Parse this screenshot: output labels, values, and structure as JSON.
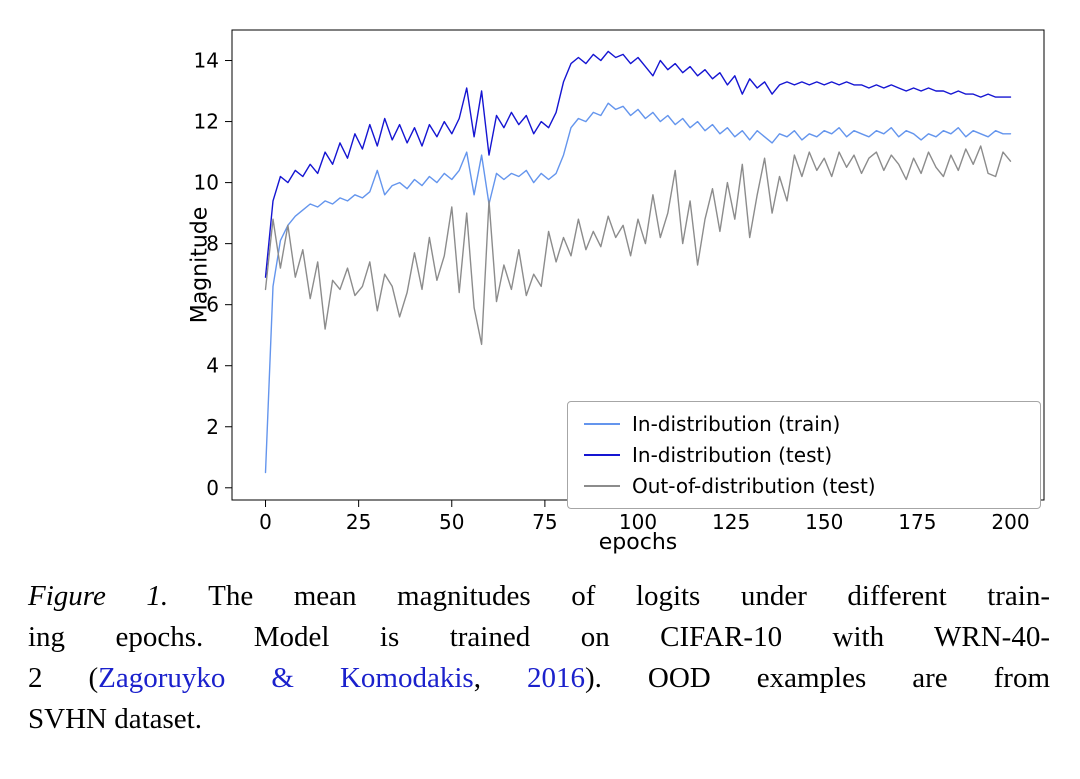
{
  "figure": {
    "caption": {
      "lines": [
        {
          "justify": true,
          "segments": [
            {
              "style": "italic",
              "text": "Figure 1."
            },
            {
              "style": "plain",
              "text": " The mean magnitudes of logits under different train-"
            }
          ]
        },
        {
          "justify": true,
          "segments": [
            {
              "style": "plain",
              "text": "ing epochs. Model is trained on CIFAR-10 with WRN-40-"
            }
          ]
        },
        {
          "justify": true,
          "segments": [
            {
              "style": "plain",
              "text": "2 ("
            },
            {
              "style": "link",
              "text": "Zagoruyko & Komodakis"
            },
            {
              "style": "plain",
              "text": ", "
            },
            {
              "style": "link",
              "text": "2016"
            },
            {
              "style": "plain",
              "text": "). OOD examples are from"
            }
          ]
        },
        {
          "justify": false,
          "segments": [
            {
              "style": "plain",
              "text": "SVHN dataset."
            }
          ]
        }
      ]
    }
  },
  "chart_data": {
    "type": "line",
    "title": "",
    "xlabel": "epochs",
    "ylabel": "Magnitude",
    "xlim": [
      -9,
      209
    ],
    "ylim": [
      -0.4,
      15.0
    ],
    "x_ticks": [
      0,
      25,
      50,
      75,
      100,
      125,
      150,
      175,
      200
    ],
    "y_ticks": [
      0,
      2,
      4,
      6,
      8,
      10,
      12,
      14
    ],
    "grid": false,
    "legend_position": "lower right",
    "x": [
      0,
      2,
      4,
      6,
      8,
      10,
      12,
      14,
      16,
      18,
      20,
      22,
      24,
      26,
      28,
      30,
      32,
      34,
      36,
      38,
      40,
      42,
      44,
      46,
      48,
      50,
      52,
      54,
      56,
      58,
      60,
      62,
      64,
      66,
      68,
      70,
      72,
      74,
      76,
      78,
      80,
      82,
      84,
      86,
      88,
      90,
      92,
      94,
      96,
      98,
      100,
      102,
      104,
      106,
      108,
      110,
      112,
      114,
      116,
      118,
      120,
      122,
      124,
      126,
      128,
      130,
      132,
      134,
      136,
      138,
      140,
      142,
      144,
      146,
      148,
      150,
      152,
      154,
      156,
      158,
      160,
      162,
      164,
      166,
      168,
      170,
      172,
      174,
      176,
      178,
      180,
      182,
      184,
      186,
      188,
      190,
      192,
      194,
      196,
      198,
      200
    ],
    "series": [
      {
        "name": "In-distribution (train)",
        "color": "#6495ed",
        "values": [
          0.5,
          6.6,
          8.1,
          8.6,
          8.9,
          9.1,
          9.3,
          9.2,
          9.4,
          9.3,
          9.5,
          9.4,
          9.6,
          9.5,
          9.7,
          10.4,
          9.6,
          9.9,
          10.0,
          9.8,
          10.1,
          9.9,
          10.2,
          10.0,
          10.3,
          10.1,
          10.4,
          11.0,
          9.6,
          10.9,
          9.3,
          10.3,
          10.1,
          10.3,
          10.2,
          10.4,
          10.0,
          10.3,
          10.1,
          10.3,
          10.9,
          11.8,
          12.1,
          12.0,
          12.3,
          12.2,
          12.6,
          12.4,
          12.5,
          12.2,
          12.4,
          12.1,
          12.3,
          12.0,
          12.2,
          11.9,
          12.1,
          11.8,
          12.0,
          11.7,
          11.9,
          11.6,
          11.8,
          11.5,
          11.7,
          11.4,
          11.7,
          11.5,
          11.3,
          11.6,
          11.5,
          11.7,
          11.4,
          11.6,
          11.5,
          11.7,
          11.6,
          11.8,
          11.5,
          11.7,
          11.6,
          11.5,
          11.7,
          11.6,
          11.8,
          11.5,
          11.7,
          11.6,
          11.4,
          11.6,
          11.5,
          11.7,
          11.6,
          11.8,
          11.5,
          11.7,
          11.6,
          11.5,
          11.7,
          11.6,
          11.6
        ]
      },
      {
        "name": "In-distribution (test)",
        "color": "#1515d2",
        "values": [
          6.9,
          9.4,
          10.2,
          10.0,
          10.4,
          10.2,
          10.6,
          10.3,
          11.0,
          10.6,
          11.3,
          10.8,
          11.6,
          11.1,
          11.9,
          11.2,
          12.1,
          11.4,
          11.9,
          11.3,
          11.8,
          11.2,
          11.9,
          11.5,
          12.0,
          11.6,
          12.1,
          13.1,
          11.5,
          13.0,
          10.9,
          12.2,
          11.8,
          12.3,
          11.9,
          12.2,
          11.6,
          12.0,
          11.8,
          12.3,
          13.3,
          13.9,
          14.1,
          13.9,
          14.2,
          14.0,
          14.3,
          14.1,
          14.2,
          13.9,
          14.1,
          13.8,
          13.5,
          14.0,
          13.7,
          13.9,
          13.6,
          13.8,
          13.5,
          13.7,
          13.4,
          13.6,
          13.2,
          13.5,
          12.9,
          13.4,
          13.1,
          13.3,
          12.9,
          13.2,
          13.3,
          13.2,
          13.3,
          13.2,
          13.3,
          13.2,
          13.3,
          13.2,
          13.3,
          13.2,
          13.2,
          13.1,
          13.2,
          13.1,
          13.2,
          13.1,
          13.0,
          13.1,
          13.0,
          13.1,
          13.0,
          13.0,
          12.9,
          13.0,
          12.9,
          12.9,
          12.8,
          12.9,
          12.8,
          12.8,
          12.8
        ]
      },
      {
        "name": "Out-of-distribution (test)",
        "color": "#8c8c8c",
        "values": [
          6.5,
          8.8,
          7.2,
          8.6,
          6.9,
          7.8,
          6.2,
          7.4,
          5.2,
          6.8,
          6.5,
          7.2,
          6.3,
          6.6,
          7.4,
          5.8,
          7.0,
          6.6,
          5.6,
          6.4,
          7.7,
          6.5,
          8.2,
          6.8,
          7.6,
          9.2,
          6.4,
          9.0,
          5.9,
          4.7,
          9.4,
          6.1,
          7.3,
          6.5,
          7.8,
          6.3,
          7.0,
          6.6,
          8.4,
          7.4,
          8.2,
          7.6,
          8.8,
          7.8,
          8.4,
          7.9,
          8.9,
          8.2,
          8.6,
          7.6,
          8.8,
          8.0,
          9.6,
          8.2,
          9.0,
          10.4,
          8.0,
          9.4,
          7.3,
          8.8,
          9.8,
          8.4,
          10.0,
          8.8,
          10.6,
          8.2,
          9.6,
          10.8,
          9.0,
          10.2,
          9.4,
          10.9,
          10.2,
          11.0,
          10.4,
          10.8,
          10.2,
          11.0,
          10.5,
          10.9,
          10.3,
          10.8,
          11.0,
          10.4,
          10.9,
          10.6,
          10.1,
          10.8,
          10.3,
          11.0,
          10.5,
          10.2,
          10.9,
          10.4,
          11.1,
          10.6,
          11.2,
          10.3,
          10.2,
          11.0,
          10.7
        ]
      }
    ]
  }
}
